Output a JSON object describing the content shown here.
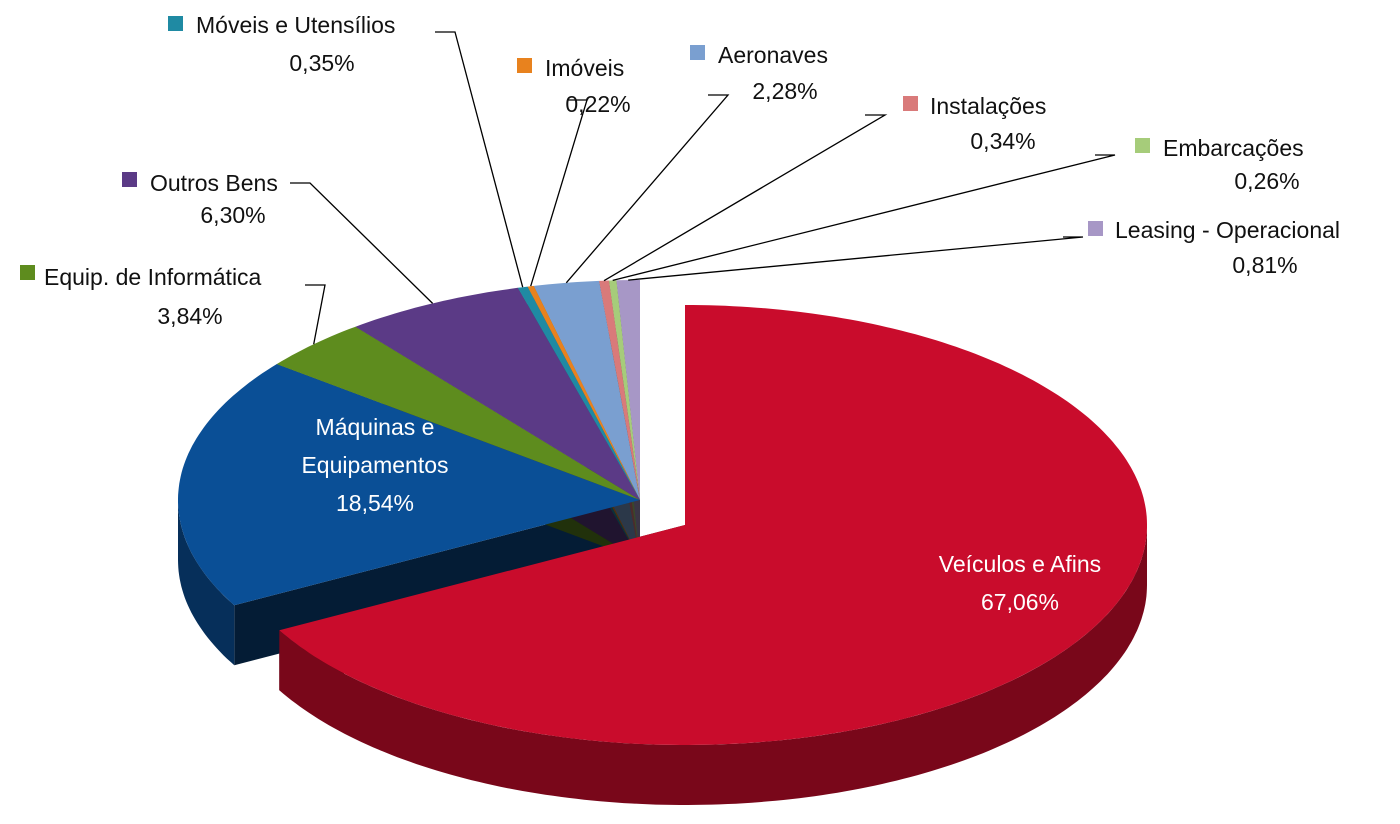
{
  "chart_data": {
    "type": "pie",
    "categories": [
      "Veículos e Afins",
      "Máquinas e Equipamentos",
      "Equip. de Informática",
      "Outros Bens",
      "Móveis e Utensílios",
      "Imóveis",
      "Aeronaves",
      "Instalações",
      "Embarcações",
      "Leasing - Operacional"
    ],
    "values": [
      67.06,
      18.54,
      3.84,
      6.3,
      0.35,
      0.22,
      2.28,
      0.34,
      0.26,
      0.81
    ],
    "value_labels": [
      "67,06%",
      "18,54%",
      "3,84%",
      "6,30%",
      "0,35%",
      "0,22%",
      "2,28%",
      "0,34%",
      "0,26%",
      "0,81%"
    ],
    "colors": [
      "#c90c2c",
      "#0a4f96",
      "#5e8c1e",
      "#5b3a86",
      "#1f8aa3",
      "#e8821e",
      "#7a9fd0",
      "#d97a7a",
      "#a6cc7a",
      "#a797c6"
    ]
  }
}
